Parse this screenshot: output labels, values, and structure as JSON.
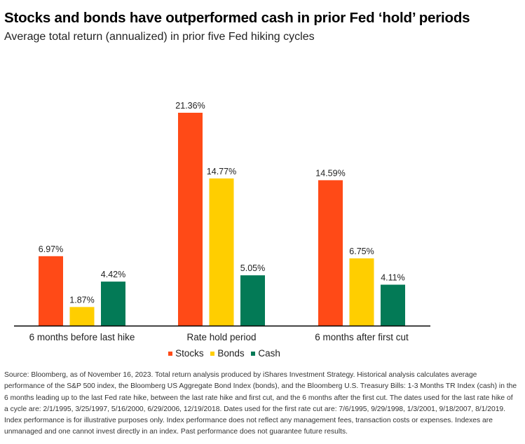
{
  "chart_data": {
    "type": "bar",
    "title": "Stocks and bonds have outperformed cash in prior Fed ‘hold’ periods",
    "subtitle": "Average total return (annualized) in prior five Fed hiking cycles",
    "categories": [
      "6 months before last hike",
      "Rate hold period",
      "6 months after first cut"
    ],
    "series": [
      {
        "name": "Stocks",
        "color": "#ff4a17",
        "values": [
          6.97,
          21.36,
          14.59
        ],
        "labels": [
          "6.97%",
          "21.36%",
          "14.59%"
        ]
      },
      {
        "name": "Bonds",
        "color": "#ffce00",
        "values": [
          1.87,
          14.77,
          6.75
        ],
        "labels": [
          "1.87%",
          "14.77%",
          "6.75%"
        ]
      },
      {
        "name": "Cash",
        "color": "#037a56",
        "values": [
          4.42,
          5.05,
          4.11
        ],
        "labels": [
          "4.42%",
          "5.05%",
          "4.11%"
        ]
      }
    ],
    "ylim": [
      0,
      21.36
    ],
    "xlabel": "",
    "ylabel": "",
    "grid": false,
    "legend": "bottom-center"
  },
  "footnote": "Source: Bloomberg, as of November 16, 2023. Total return analysis produced by iShares Investment Strategy. Historical analysis calculates average performance of the S&P 500 index, the Bloomberg US Aggregate Bond Index (bonds), and the Bloomberg U.S. Treasury Bills: 1-3 Months TR Index (cash) in the 6 months leading up to the last Fed rate hike, between the last rate hike and first cut, and the 6 months after the first cut. The dates used for the last rate hike of a cycle are: 2/1/1995, 3/25/1997, 5/16/2000, 6/29/2006, 12/19/2018. Dates used for the first rate cut are: 7/6/1995, 9/29/1998, 1/3/2001, 9/18/2007, 8/1/2019. Index performance is for illustrative purposes only. Index performance does not reflect any management fees, transaction costs or expenses. Indexes are unmanaged and one cannot invest directly in an index. Past performance does not guarantee future results."
}
